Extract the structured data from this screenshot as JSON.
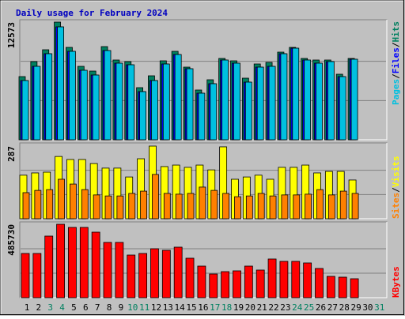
{
  "chart_data": [
    {
      "type": "bar",
      "title": "Daily usage for February 2024",
      "legend_separator": "/",
      "series": [
        {
          "name": "Hits",
          "color": "#008060",
          "values": [
            6750,
            8354,
            9619,
            12573,
            9873,
            7847,
            7341,
            9957,
            8522,
            8354,
            5569,
            6835,
            8438,
            9451,
            7763,
            5316,
            6413,
            8691,
            8438,
            6582,
            8100,
            8269,
            9366,
            9873,
            8691,
            8522,
            8522,
            7004,
            8691,
            null,
            null
          ]
        },
        {
          "name": "Files",
          "color": "#0000ff",
          "values": [
            6329,
            7847,
            9197,
            12066,
            9451,
            7425,
            6919,
            9535,
            8185,
            8016,
            5147,
            6329,
            8100,
            9113,
            7594,
            4978,
            5991,
            8522,
            8185,
            6160,
            7763,
            7847,
            9197,
            9788,
            8522,
            8185,
            8354,
            6750,
            8607,
            null,
            null
          ]
        },
        {
          "name": "Pages",
          "color": "#00c0e0",
          "values": [
            6329,
            7847,
            9197,
            12066,
            9451,
            7425,
            6919,
            9535,
            8185,
            8016,
            5147,
            6329,
            8100,
            9113,
            7594,
            4978,
            5991,
            8522,
            8185,
            6160,
            7763,
            7847,
            9197,
            9788,
            8522,
            8185,
            8354,
            6750,
            8607,
            null,
            null
          ]
        }
      ],
      "ylim": [
        0,
        12573
      ],
      "yticks": [
        12573
      ]
    },
    {
      "type": "bar",
      "legend_separator": "/",
      "series": [
        {
          "name": "Visits",
          "color": "#ffff00",
          "values": [
            172,
            181,
            184,
            246,
            234,
            234,
            218,
            200,
            200,
            165,
            237,
            287,
            206,
            212,
            203,
            212,
            193,
            284,
            156,
            165,
            172,
            156,
            203,
            203,
            212,
            181,
            187,
            187,
            153,
            null,
            null
          ]
        },
        {
          "name": "Sites",
          "color": "#ff8000",
          "values": [
            103,
            112,
            115,
            156,
            137,
            115,
            94,
            90,
            90,
            100,
            109,
            175,
            100,
            97,
            100,
            125,
            112,
            100,
            87,
            90,
            100,
            90,
            94,
            94,
            97,
            115,
            94,
            109,
            100,
            null,
            null
          ]
        }
      ],
      "ylim": [
        0,
        287
      ],
      "yticks": [
        287
      ]
    },
    {
      "type": "bar",
      "categories": [
        "1",
        "2",
        "3",
        "4",
        "5",
        "6",
        "7",
        "8",
        "9",
        "10",
        "11",
        "12",
        "13",
        "14",
        "15",
        "16",
        "17",
        "18",
        "19",
        "20",
        "21",
        "22",
        "23",
        "24",
        "25",
        "26",
        "27",
        "28",
        "29",
        "30",
        "31"
      ],
      "category_colors": [
        "#000000",
        "#000000",
        "#008060",
        "#008060",
        "#000000",
        "#000000",
        "#000000",
        "#000000",
        "#000000",
        "#008060",
        "#008060",
        "#000000",
        "#000000",
        "#000000",
        "#000000",
        "#000000",
        "#008060",
        "#008060",
        "#000000",
        "#000000",
        "#000000",
        "#000000",
        "#000000",
        "#008060",
        "#008060",
        "#000000",
        "#000000",
        "#000000",
        "#000000",
        "#000000",
        "#008060"
      ],
      "series": [
        {
          "name": "KBytes",
          "color": "#ff0000",
          "values": [
            292488,
            292488,
            407394,
            485730,
            464847,
            464847,
            433509,
            365610,
            365610,
            282042,
            292488,
            323826,
            313380,
            334272,
            261150,
            208920,
            156690,
            172359,
            177582,
            208920,
            182805,
            255927,
            240258,
            240258,
            229812,
            193251,
            141021,
            135798,
            125352,
            null,
            null
          ]
        }
      ],
      "ylim": [
        0,
        485730
      ],
      "yticks": [
        485730
      ]
    }
  ]
}
